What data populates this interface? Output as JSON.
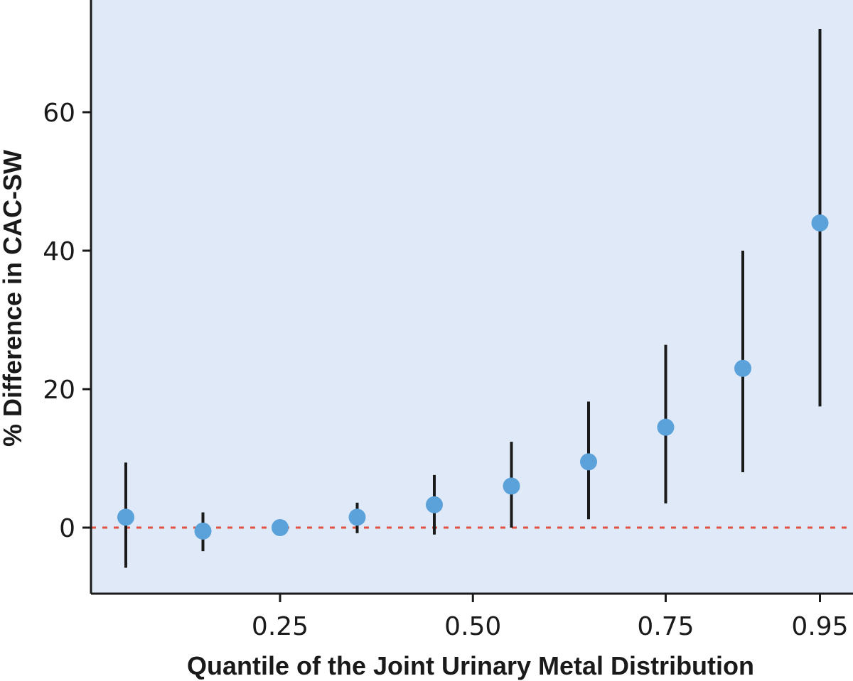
{
  "chart_data": {
    "type": "scatter",
    "xlabel": "Quantile of the Joint Urinary Metal Distribution",
    "ylabel": "% Difference in CAC-SW",
    "xlim": [
      0.0,
      0.97
    ],
    "ylim": [
      -9.5,
      76
    ],
    "x_ticks": [
      0.25,
      0.5,
      0.75,
      0.95
    ],
    "x_tick_labels": [
      "0.25",
      "0.50",
      "0.75",
      "0.95"
    ],
    "y_ticks": [
      0,
      20,
      40,
      60
    ],
    "y_tick_labels": [
      "0",
      "20",
      "40",
      "60"
    ],
    "reference_line": {
      "y": 0,
      "style": "dashed",
      "color": "#e0533e"
    },
    "grid": false,
    "background": "#dfe9f7",
    "point_color": "#5aa2d9",
    "errorbar_color": "#1a1a1a",
    "points": [
      {
        "x": 0.05,
        "y": 1.5,
        "lower": -5.8,
        "upper": 9.4
      },
      {
        "x": 0.15,
        "y": -0.5,
        "lower": -3.4,
        "upper": 2.2
      },
      {
        "x": 0.25,
        "y": 0.0,
        "lower": 0.0,
        "upper": 0.0
      },
      {
        "x": 0.35,
        "y": 1.5,
        "lower": -0.8,
        "upper": 3.6
      },
      {
        "x": 0.45,
        "y": 3.3,
        "lower": -1.0,
        "upper": 7.6
      },
      {
        "x": 0.55,
        "y": 6.0,
        "lower": 0.0,
        "upper": 12.4
      },
      {
        "x": 0.65,
        "y": 9.5,
        "lower": 1.2,
        "upper": 18.2
      },
      {
        "x": 0.75,
        "y": 14.5,
        "lower": 3.5,
        "upper": 26.4
      },
      {
        "x": 0.85,
        "y": 23.0,
        "lower": 8.0,
        "upper": 40.0
      },
      {
        "x": 0.95,
        "y": 44.0,
        "lower": 17.5,
        "upper": 72.0
      }
    ]
  }
}
